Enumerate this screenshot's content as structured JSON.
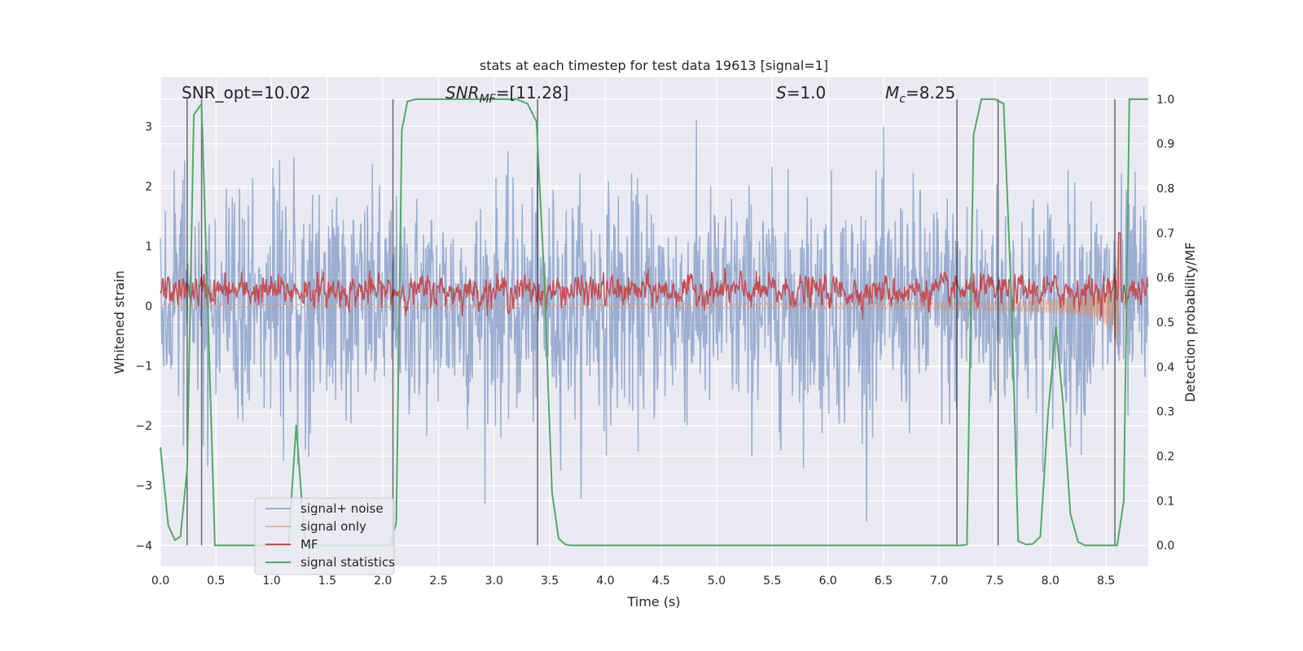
{
  "chart_data": {
    "type": "line",
    "title": "stats at each timestep for test data 19613 [signal=1]",
    "xlabel": "Time (s)",
    "ylabel": "Whitened strain",
    "ylabel_right": "Detection probability/MF",
    "xlim": [
      0,
      8.88
    ],
    "ylim": [
      -4.35,
      3.82
    ],
    "ylim_right": [
      -0.047,
      1.049
    ],
    "xticks": [
      "0.0",
      "0.5",
      "1.0",
      "1.5",
      "2.0",
      "2.5",
      "3.0",
      "3.5",
      "4.0",
      "4.5",
      "5.0",
      "5.5",
      "6.0",
      "6.5",
      "7.0",
      "7.5",
      "8.0",
      "8.5"
    ],
    "yticks": [
      "3",
      "2",
      "1",
      "0",
      "−1",
      "−2",
      "−3",
      "−4"
    ],
    "yticks_right": [
      "0.0",
      "0.1",
      "0.2",
      "0.3",
      "0.4",
      "0.5",
      "0.6",
      "0.7",
      "0.8",
      "0.9",
      "1.0"
    ],
    "grid": true,
    "legend_position": "lower-left",
    "annotations": {
      "snr_opt": "SNR_opt=10.02",
      "snr_mf_main": "SNR",
      "snr_mf_sub": "MF",
      "snr_mf_rest": "=[11.28]",
      "s_main": "S",
      "s_rest": "=1.0",
      "mc_main": "M",
      "mc_sub": "c",
      "mc_rest": "=8.25"
    },
    "series": [
      {
        "name": "signal+ noise",
        "color": "#4c72b0",
        "axis": "left",
        "generated": {
          "n": 1800,
          "std": 0.95,
          "mean": 0
        }
      },
      {
        "name": "signal only",
        "color": "#dd8452",
        "axis": "left",
        "generated": {
          "start": 4.5,
          "merger": 8.62,
          "peak_amplitude": 1.3
        }
      },
      {
        "name": "MF",
        "color": "#c44e52",
        "axis": "right",
        "generated": {
          "n": 1800,
          "mean": 0.57,
          "std": 0.015
        }
      },
      {
        "name": "signal statistics",
        "color": "#55a868",
        "axis": "right",
        "x": [
          0,
          0.07,
          0.13,
          0.18,
          0.24,
          0.3,
          0.37,
          0.43,
          0.49,
          0.55,
          1.15,
          1.22,
          1.3,
          2.06,
          2.12,
          2.17,
          2.22,
          2.3,
          3.2,
          3.3,
          3.38,
          3.45,
          3.52,
          3.58,
          3.64,
          3.7,
          7.2,
          7.25,
          7.31,
          7.38,
          7.5,
          7.58,
          7.65,
          7.71,
          7.78,
          7.84,
          7.91,
          7.98,
          8.05,
          8.11,
          8.18,
          8.25,
          8.31,
          8.6,
          8.66,
          8.71,
          8.88
        ],
        "y": [
          0.22,
          0.045,
          0.012,
          0.02,
          0.17,
          0.965,
          0.99,
          0.5,
          0.0,
          0.0,
          0.0,
          0.27,
          0.0,
          0.0,
          0.05,
          0.93,
          0.995,
          1.0,
          1.0,
          0.99,
          0.95,
          0.6,
          0.12,
          0.015,
          0.002,
          0.0,
          0.0,
          0.002,
          0.92,
          1.0,
          1.0,
          0.99,
          0.55,
          0.01,
          0.002,
          0.003,
          0.02,
          0.3,
          0.49,
          0.33,
          0.07,
          0.008,
          0.0,
          0.0,
          0.1,
          1.0,
          1.0
        ]
      }
    ],
    "vlines": [
      0.24,
      0.37,
      2.09,
      3.39,
      7.16,
      7.53,
      8.58
    ]
  }
}
